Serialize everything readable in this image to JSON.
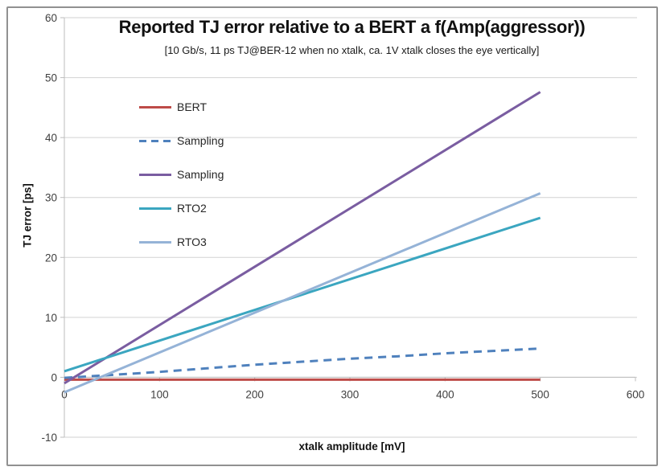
{
  "frame": {
    "background": "#ffffff",
    "border_color": "#919191"
  },
  "chart_data": {
    "type": "line",
    "title": "Reported TJ error relative to a BERT a f(Amp(aggressor))",
    "subtitle": "[10 Gb/s, 11 ps TJ@BER-12 when no xtalk, ca. 1V xtalk closes the eye vertically]",
    "xlabel": "xtalk amplitude [mV]",
    "ylabel": "TJ error [ps]",
    "xlim": [
      0,
      600
    ],
    "ylim": [
      -10,
      60
    ],
    "xticks": [
      0,
      100,
      200,
      300,
      400,
      500,
      600
    ],
    "yticks": [
      -10,
      0,
      10,
      20,
      30,
      40,
      50,
      60
    ],
    "grid": "horizontal-only",
    "grid_color": "#d2d2d2",
    "axis_color": "#bdbdbd",
    "tick_text_color": "#3f3f3f",
    "legend_position": "inside-top-left",
    "series": [
      {
        "name": "BERT",
        "color": "#be4b48",
        "style": "solid",
        "width": 3,
        "x": [
          0,
          500
        ],
        "y": [
          -0.4,
          -0.4
        ]
      },
      {
        "name": "Sampling",
        "color": "#4f81bd",
        "style": "dashed",
        "width": 3,
        "x": [
          0,
          50,
          100,
          150,
          200,
          250,
          300,
          350,
          400,
          450,
          500
        ],
        "y": [
          -0.1,
          0.4,
          0.9,
          1.5,
          2.1,
          2.6,
          3.1,
          3.5,
          4.0,
          4.4,
          4.8
        ]
      },
      {
        "name": "Sampling",
        "color": "#7a5da1",
        "style": "solid",
        "width": 3,
        "x": [
          0,
          250,
          500
        ],
        "y": [
          -1.0,
          23.3,
          47.6
        ]
      },
      {
        "name": "RTO2",
        "color": "#3ba6c0",
        "style": "solid",
        "width": 3,
        "x": [
          0,
          250,
          500
        ],
        "y": [
          1.0,
          13.8,
          26.6
        ]
      },
      {
        "name": "RTO3",
        "color": "#95b3d7",
        "style": "solid",
        "width": 3,
        "x": [
          0,
          250,
          500
        ],
        "y": [
          -2.5,
          14.1,
          30.7
        ]
      }
    ]
  }
}
